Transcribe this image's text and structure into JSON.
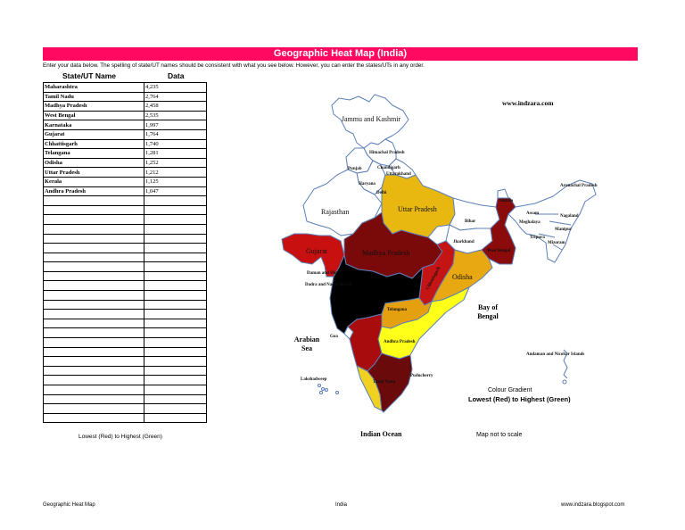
{
  "header": {
    "title": "Geographic Heat Map (India)",
    "instructions": "Enter your data below. The spelling of state/UT names should be consistent with what you see below. However, you can enter the states/UTs in any order."
  },
  "table": {
    "columns": [
      "State/UT Name",
      "Data"
    ],
    "rows": [
      {
        "name": "Maharashtra",
        "value": "4,235"
      },
      {
        "name": "Tamil Nadu",
        "value": "2,764"
      },
      {
        "name": "Madhya Pradesh",
        "value": "2,458"
      },
      {
        "name": "West Bengal",
        "value": "2,535"
      },
      {
        "name": "Karnataka",
        "value": "1,997"
      },
      {
        "name": "Gujarat",
        "value": "1,764"
      },
      {
        "name": "Chhattisgarh",
        "value": "1,740"
      },
      {
        "name": "Telangana",
        "value": "1,281"
      },
      {
        "name": "Odisha",
        "value": "1,252"
      },
      {
        "name": "Uttar Pradesh",
        "value": "1,212"
      },
      {
        "name": "Kerala",
        "value": "1,125"
      },
      {
        "name": "Andhra Pradesh",
        "value": "1,047"
      }
    ],
    "empty_rows": 24,
    "legend": "Lowest (Red) to Highest (Green)"
  },
  "map": {
    "website": "www.indzara.com",
    "seas": {
      "arabian": "Arabian Sea",
      "bay": "Bay of Bengal",
      "indian": "Indian Ocean"
    },
    "labels": {
      "jk": "Jammu and Kashmir",
      "hp": "Himachal Pradesh",
      "punjab": "Punjab",
      "chandigarh": "Chandigarh",
      "uttarakhand": "Uttarakhand",
      "haryana": "Haryana",
      "delhi": "Delhi",
      "rajasthan": "Rajasthan",
      "up": "Uttar Pradesh",
      "bihar": "Bihar",
      "sikkim": "Sikkim",
      "arunachal": "Arunachal Pradesh",
      "assam": "Assam",
      "meghalaya": "Meghalaya",
      "nagaland": "Nagaland",
      "manipur": "Manipur",
      "tripura": "Tripura",
      "mizoram": "Mizoram",
      "jharkhand": "Jharkhand",
      "wb": "West Bengal",
      "gujarat": "Gujarat",
      "mp": "Madhya Pradesh",
      "chhattisgarh": "Chhattisgarh",
      "odisha": "Odisha",
      "daman": "Daman and Diu",
      "dadra": "Dadra and Nagar Haveli",
      "telangana": "Telangana",
      "goa": "Goa",
      "ap": "Andhra Pradesh",
      "lakshadweep": "Lakshadweep",
      "tn": "Tamil Nadu",
      "puducherry": "Puducherry",
      "andaman": "Andaman and Nicobar Islands"
    },
    "colors": {
      "maharashtra": "#000000",
      "tamil_nadu": "#6b0a0a",
      "madhya_pradesh": "#7a0a0a",
      "west_bengal": "#8b0a0a",
      "karnataka": "#a80c0c",
      "gujarat": "#c81010",
      "chhattisgarh": "#c41414",
      "telangana": "#e5a010",
      "odisha": "#e8a812",
      "uttar_pradesh": "#e8b810",
      "kerala": "#f0d020",
      "andhra_pradesh": "#ffff1a",
      "default": "#ffffff",
      "border": "#5b7fb8"
    },
    "gradient_title": "Colour Gradient",
    "gradient_subtitle": "Lowest (Red) to Highest (Green)",
    "note": "Map not to scale"
  },
  "footer": {
    "left": "Geographic Heat Map",
    "center": "India",
    "right": "www.indzara.blogspot.com"
  }
}
